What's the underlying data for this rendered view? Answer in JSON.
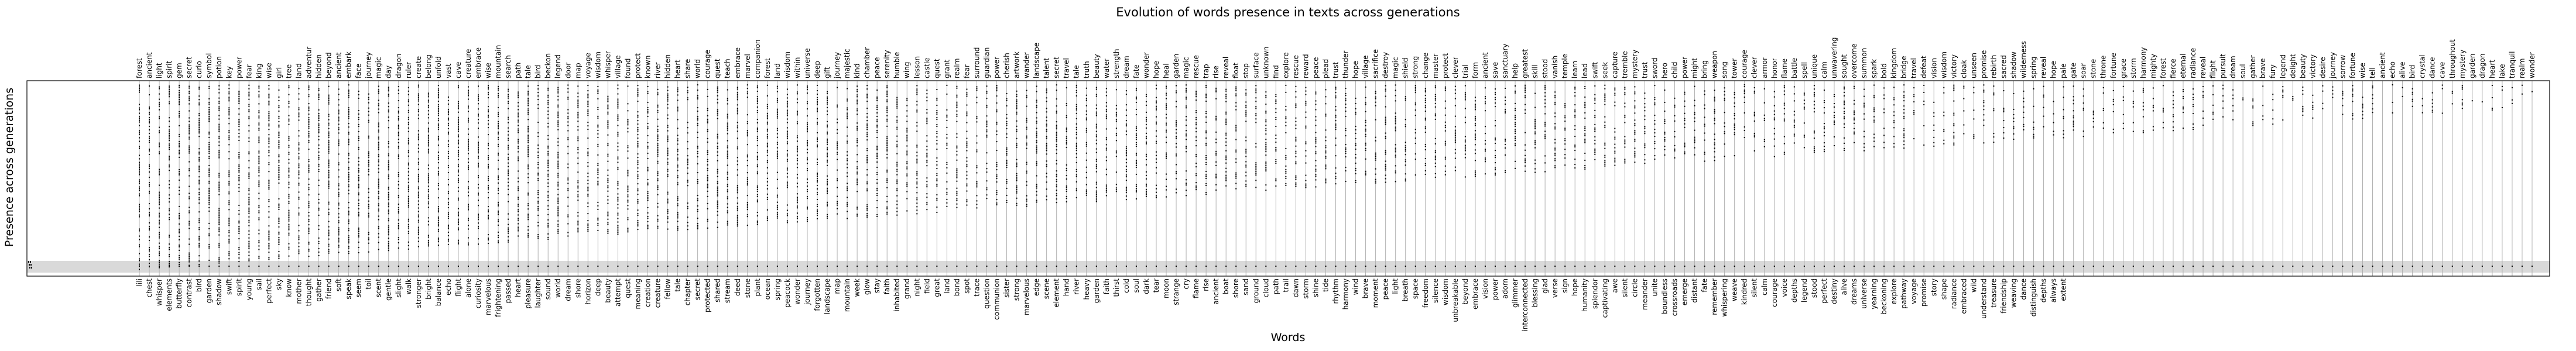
{
  "chart_data": {
    "type": "scatter",
    "title": "Evolution of words presence in texts across generations",
    "xlabel": "Words",
    "ylabel": "Presence across generations",
    "y_tick_labels": [],
    "grid": true,
    "bottom_words": [
      "lili",
      "chest",
      "whisper",
      "elements",
      "butterfly",
      "contrast",
      "bird",
      "garden",
      "shadow",
      "swift",
      "spirit",
      "young",
      "sail",
      "perfect",
      "sky",
      "know",
      "mother",
      "thought",
      "gather",
      "friend",
      "soft",
      "speak",
      "seem",
      "toil",
      "scent",
      "gentle",
      "slight",
      "walk",
      "stronger",
      "bright",
      "balance",
      "echo",
      "flight",
      "alone",
      "curiosity",
      "marvelous",
      "frightening",
      "passed",
      "heart",
      "pleasure",
      "laughter",
      "sound",
      "world",
      "dream",
      "shore",
      "horizon",
      "deep",
      "beauty",
      "attempt",
      "quest",
      "meaning",
      "creation",
      "creature",
      "fellow",
      "tale",
      "chapter",
      "secret",
      "protected",
      "shared",
      "stream",
      "deed",
      "stone",
      "plant",
      "ocean",
      "spring",
      "peacock",
      "wonder",
      "journey",
      "forgotten",
      "landscape",
      "map",
      "mountain",
      "week",
      "glow",
      "stay",
      "faith",
      "inhabited",
      "grand",
      "night",
      "field",
      "great",
      "land",
      "bond",
      "spot",
      "trace",
      "question",
      "communion",
      "sister",
      "strong",
      "marvelous",
      "edge",
      "scene",
      "element",
      "hand",
      "river",
      "heavy",
      "garden",
      "faith",
      "thirst",
      "cold",
      "soul",
      "dark",
      "tear",
      "moon",
      "strange",
      "cry",
      "flame",
      "rise",
      "ancient",
      "boat",
      "shore",
      "sand",
      "ground",
      "cloud",
      "path",
      "trail",
      "dawn",
      "storm",
      "shine",
      "tide",
      "rhythm",
      "harmony",
      "wind",
      "brave",
      "moment",
      "peace",
      "light",
      "breath",
      "space",
      "freedom",
      "silence",
      "wisdom",
      "unbreakable",
      "beyond",
      "embrace",
      "vision",
      "power",
      "adorn",
      "glimmer",
      "interconnected",
      "blessing",
      "glad",
      "verse",
      "sign",
      "hope",
      "humanity",
      "splendor",
      "captivating",
      "awe",
      "silent",
      "circle",
      "meander",
      "unite",
      "boundless",
      "crossroads",
      "emerge",
      "distant",
      "fate",
      "remember",
      "whispering",
      "weave",
      "kindred",
      "silent",
      "calm",
      "courage",
      "voice",
      "depths",
      "legend",
      "stood",
      "perfect",
      "destiny",
      "alive",
      "dreams",
      "universe",
      "yearning",
      "beckoning",
      "explore",
      "pathway",
      "voyage",
      "promise",
      "story",
      "shape",
      "radiance",
      "embraced",
      "wild",
      "understand",
      "treasure",
      "friendship",
      "weaving",
      "dance",
      "distinguish",
      "depths",
      "always",
      "extent"
    ],
    "top_words": [
      "forest",
      "ancient",
      "light",
      "spirit",
      "gem",
      "secret",
      "curio",
      "symbol",
      "potion",
      "key",
      "power",
      "fear",
      "king",
      "wise",
      "girl",
      "tree",
      "land",
      "adventur",
      "hidden",
      "beyond",
      "ancient",
      "embark",
      "face",
      "journey",
      "magic",
      "day",
      "dragon",
      "ruler",
      "create",
      "belong",
      "unfold",
      "vast",
      "cave",
      "creature",
      "embrace",
      "wise",
      "mountain",
      "search",
      "path",
      "tale",
      "bird",
      "beckon",
      "legend",
      "door",
      "map",
      "voyage",
      "wisdom",
      "whisper",
      "village",
      "found",
      "protect",
      "known",
      "river",
      "hidden",
      "heart",
      "share",
      "world",
      "courage",
      "quest",
      "teach",
      "embrace",
      "marvel",
      "companion",
      "forest",
      "land",
      "wisdom",
      "within",
      "universe",
      "deep",
      "gift",
      "journey",
      "majestic",
      "kind",
      "chamber",
      "peace",
      "serenity",
      "humble",
      "wing",
      "lesson",
      "castle",
      "quest",
      "grant",
      "realm",
      "fear",
      "surround",
      "guardian",
      "power",
      "cherish",
      "artwork",
      "wander",
      "landscape",
      "talent",
      "secret",
      "travel",
      "tale",
      "truth",
      "beauty",
      "water",
      "strength",
      "dream",
      "fate",
      "wonder",
      "hope",
      "heal",
      "garden",
      "magic",
      "rescue",
      "trap",
      "rise",
      "reveal",
      "float",
      "stop",
      "surface",
      "unknown",
      "find",
      "explore",
      "rescue",
      "reward",
      "peace",
      "plead",
      "trust",
      "thunder",
      "hope",
      "village",
      "sacrifice",
      "destroy",
      "magic",
      "shield",
      "strong",
      "change",
      "master",
      "protect",
      "clever",
      "trial",
      "form",
      "ancient",
      "save",
      "sanctuary",
      "help",
      "greatest",
      "skill",
      "stood",
      "vanish",
      "temple",
      "learn",
      "lead",
      "swift",
      "seek",
      "capture",
      "tremble",
      "mystery",
      "trust",
      "sword",
      "hero",
      "child",
      "power",
      "might",
      "bring",
      "weapon",
      "song",
      "tower",
      "courage",
      "clever",
      "armor",
      "honor",
      "flame",
      "battle",
      "spell",
      "unique",
      "calm",
      "unwavering",
      "sought",
      "overcome",
      "summon",
      "spark",
      "bold",
      "kingdom",
      "bridge",
      "travel",
      "defeat",
      "vision",
      "wisdom",
      "victory",
      "cloak",
      "unseen",
      "promise",
      "rebirth",
      "sacred",
      "shadow",
      "wilderness",
      "spring",
      "reveal",
      "hope",
      "pale",
      "gate",
      "soar",
      "stone",
      "throne",
      "fortune",
      "grace",
      "storm",
      "harmony",
      "mighty",
      "forest",
      "fierce",
      "eternal",
      "radiance",
      "reveal",
      "flight",
      "pursuit",
      "dream",
      "soul",
      "gather",
      "brave",
      "fury",
      "legend",
      "delight",
      "beauty",
      "victory",
      "desire",
      "journey",
      "sorrow",
      "fortune",
      "wise",
      "tell",
      "ancient",
      "echo",
      "alive",
      "bird",
      "crystal",
      "dance",
      "cave",
      "throughout",
      "mystery",
      "garden",
      "dragon",
      "heart",
      "lake",
      "tranquil",
      "realm",
      "wonder"
    ],
    "series": [
      {
        "marker": "point",
        "color": "#000000",
        "ylim": [
          0,
          1
        ],
        "note_band": [
          0,
          0.07
        ]
      }
    ],
    "profile": {
      "description_of_pattern": "each word column shows black dots at generations where the word is present; words ordered by first appearance, forming an ascending staircase from left (present almost everywhere) to right (present only at the top)",
      "start_fraction_first_word": 0.0,
      "start_fraction_last_word": 0.88
    }
  }
}
